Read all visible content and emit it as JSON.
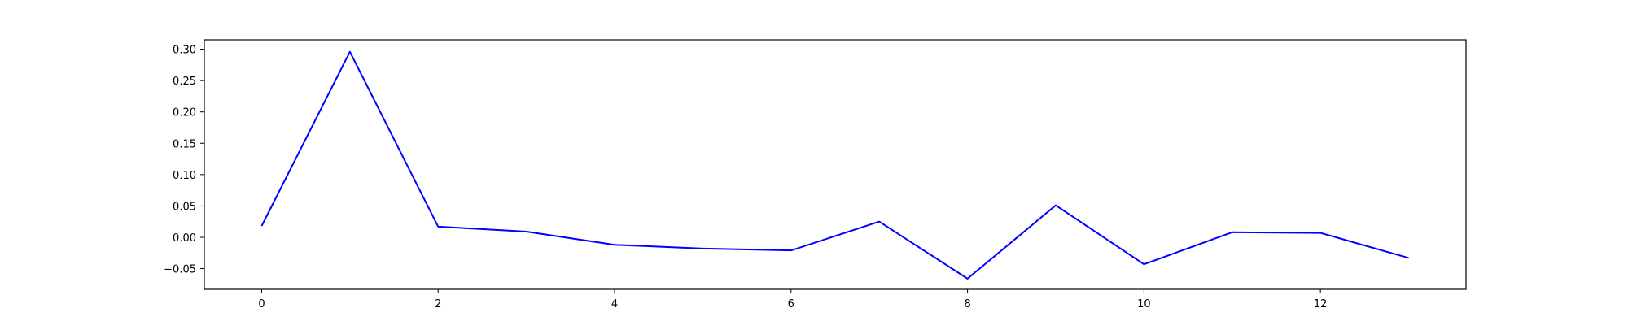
{
  "chart_data": {
    "type": "line",
    "title": "",
    "xlabel": "",
    "ylabel": "",
    "x": [
      0,
      1,
      2,
      3,
      4,
      5,
      6,
      7,
      8,
      9,
      10,
      11,
      12,
      13
    ],
    "series": [
      {
        "values": [
          0.018,
          0.296,
          0.017,
          0.009,
          -0.012,
          -0.018,
          -0.021,
          0.025,
          -0.066,
          0.051,
          -0.043,
          0.008,
          0.007,
          -0.033
        ]
      }
    ],
    "xlim": [
      -0.65,
      13.65
    ],
    "ylim": [
      -0.083,
      0.315
    ],
    "xticks": [
      0,
      2,
      4,
      6,
      8,
      10,
      12
    ],
    "xtick_labels": [
      "0",
      "2",
      "4",
      "6",
      "8",
      "10",
      "12"
    ],
    "yticks": [
      -0.05,
      0.0,
      0.05,
      0.1,
      0.15,
      0.2,
      0.25,
      0.3
    ],
    "ytick_labels": [
      "−0.05",
      "0.00",
      "0.05",
      "0.10",
      "0.15",
      "0.20",
      "0.25",
      "0.30"
    ],
    "grid": false,
    "legend": "none",
    "colors": {
      "line": "#0000ff",
      "axes": "#000000",
      "background": "#ffffff"
    }
  }
}
